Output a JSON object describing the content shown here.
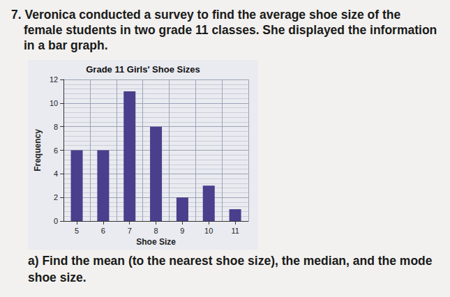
{
  "question": {
    "number": "7.",
    "text": "Veronica conducted a survey to find the average shoe size of the female students in two grade 11 classes. She displayed the information in a bar graph."
  },
  "part_a": "a) Find the mean (to the nearest shoe size), the median, and the mode shoe size.",
  "chart_data": {
    "type": "bar",
    "title": "Grade 11 Girls' Shoe Sizes",
    "x_label": "Shoe Size",
    "y_label": "Frequency",
    "categories": [
      "5",
      "6",
      "7",
      "8",
      "9",
      "10",
      "11"
    ],
    "values": [
      6,
      6,
      11,
      8,
      2,
      3,
      1
    ],
    "color": "#4a3f8c",
    "ylim": [
      0,
      12
    ],
    "yticks": [
      0,
      2,
      4,
      6,
      8,
      10,
      12
    ],
    "grid": true
  }
}
